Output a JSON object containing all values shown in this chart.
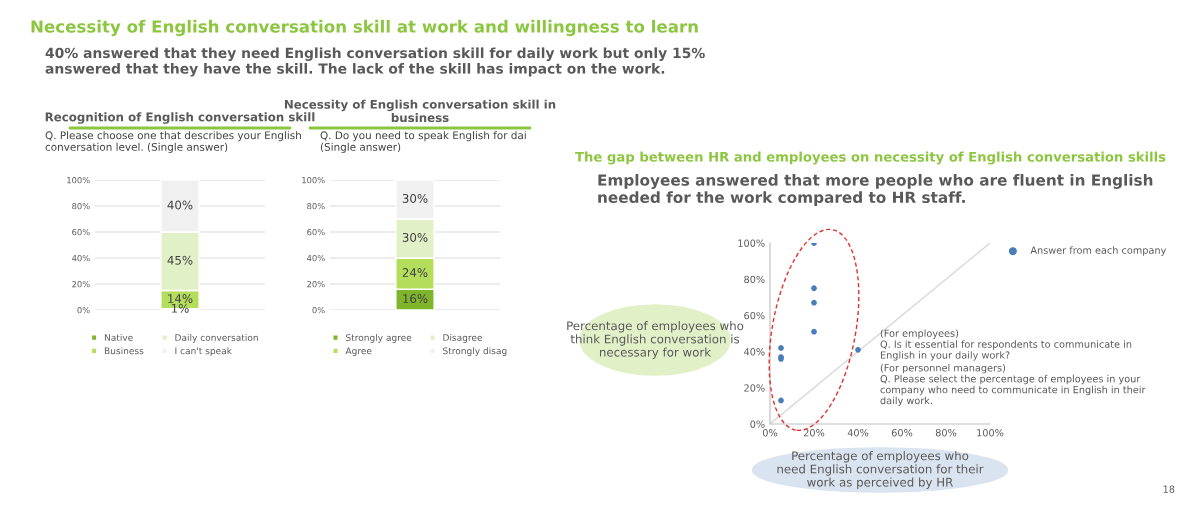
{
  "chart_data": [
    {
      "type": "bar",
      "stacked": true,
      "title": "Recognition of English conversation skill",
      "subtitle": "Q. Please choose one that describes your English\nconversation level. (Single answer)",
      "annotations": [
        "Necessity of English conversation skill at work and willingness to learn",
        "40% answered that they need English conversation skill for daily work but only 15%\nanswered that they have the skill. The lack of the skill has impact on the work."
      ],
      "categories": [
        null
      ],
      "series": [
        {
          "name": "Native",
          "color": "#7fb52a",
          "values": [
            1
          ],
          "value_labels": [
            "1%"
          ]
        },
        {
          "name": "Business",
          "color": "#b5dd5c",
          "values": [
            14
          ],
          "value_labels": [
            "14%"
          ]
        },
        {
          "name": "Daily conversation",
          "color": "#e2f0c8",
          "values": [
            45
          ],
          "value_labels": [
            "45%"
          ]
        },
        {
          "name": "I can't speak",
          "color": "#f0f0f0",
          "values": [
            40
          ],
          "value_labels": [
            "40%"
          ]
        }
      ],
      "ylim": [
        0,
        100
      ],
      "yticks": [
        {
          "value": 0,
          "label": "0%"
        },
        {
          "value": 20,
          "label": "20%"
        },
        {
          "value": 40,
          "label": "40%"
        },
        {
          "value": 60,
          "label": "60%"
        },
        {
          "value": 80,
          "label": "80%"
        },
        {
          "value": 100,
          "label": "100%"
        }
      ],
      "grid": "y",
      "legend": "bottom"
    },
    {
      "type": "bar",
      "stacked": true,
      "title": "Necessity of English conversation skill in\nbusiness",
      "subtitle": "Q. Do you need to speak English for dai\n(Single answer)",
      "categories": [
        null
      ],
      "series": [
        {
          "name": "Strongly agree",
          "color": "#7fb52a",
          "values": [
            16
          ],
          "value_labels": [
            "16%"
          ]
        },
        {
          "name": "Agree",
          "color": "#b5dd5c",
          "values": [
            24
          ],
          "value_labels": [
            "24%"
          ]
        },
        {
          "name": "Disagree",
          "color": "#e2f0c8",
          "values": [
            30
          ],
          "value_labels": [
            "30%"
          ]
        },
        {
          "name": "Strongly disag",
          "color": "#f0f0f0",
          "values": [
            30
          ],
          "value_labels": [
            "30%"
          ]
        }
      ],
      "ylim": [
        0,
        100
      ],
      "yticks": [
        {
          "value": 0,
          "label": "0%"
        },
        {
          "value": 20,
          "label": "20%"
        },
        {
          "value": 40,
          "label": "40%"
        },
        {
          "value": 60,
          "label": "60%"
        },
        {
          "value": 80,
          "label": "80%"
        },
        {
          "value": 100,
          "label": "100%"
        }
      ],
      "grid": "y",
      "legend": "bottom"
    },
    {
      "type": "scatter",
      "title": "The gap between HR and employees on necessity of English conversation skills",
      "subtitle": "Employees answered that more people who are fluent in English\nneeded for the work compared to HR staff.",
      "xlabel": "Percentage of employees who\nneed English conversation for their\nwork as perceived by HR",
      "ylabel": "Percentage of employees who\nthink English conversation is\nnecessary for work",
      "annotations": [
        "(For employees)\nQ. Is it essential for respondents to communicate in\nEnglish in your daily work?",
        "(For personnel managers)\nQ. Please select the percentage of employees in your\ncompany who need to communicate in English in their\ndaily work.",
        "18"
      ],
      "series": [
        {
          "name": "Answer from each company",
          "type": "scatter",
          "marker": "circle",
          "color": "#4a7ebb",
          "x": [
            5,
            5,
            5,
            5,
            20,
            20,
            20,
            20,
            40
          ],
          "values": [
            42,
            37,
            36,
            13,
            100,
            75,
            67,
            51,
            41
          ]
        },
        {
          "type": "line",
          "color": "#d9d9d9",
          "x": [
            0,
            100
          ],
          "values": [
            0,
            100
          ]
        }
      ],
      "xlim": [
        0,
        100
      ],
      "ylim": [
        0,
        100
      ],
      "xticks": [
        {
          "value": 0,
          "label": "0%"
        },
        {
          "value": 20,
          "label": "20%"
        },
        {
          "value": 40,
          "label": "40%"
        },
        {
          "value": 60,
          "label": "60%"
        },
        {
          "value": 80,
          "label": "80%"
        },
        {
          "value": 100,
          "label": "100%"
        }
      ],
      "yticks": [
        {
          "value": 0,
          "label": "0%"
        },
        {
          "value": 20,
          "label": "20%"
        },
        {
          "value": 40,
          "label": "40%"
        },
        {
          "value": 60,
          "label": "60%"
        },
        {
          "value": 80,
          "label": "80%"
        },
        {
          "value": 100,
          "label": "100%"
        }
      ],
      "grid": false,
      "legend": "top right"
    }
  ]
}
